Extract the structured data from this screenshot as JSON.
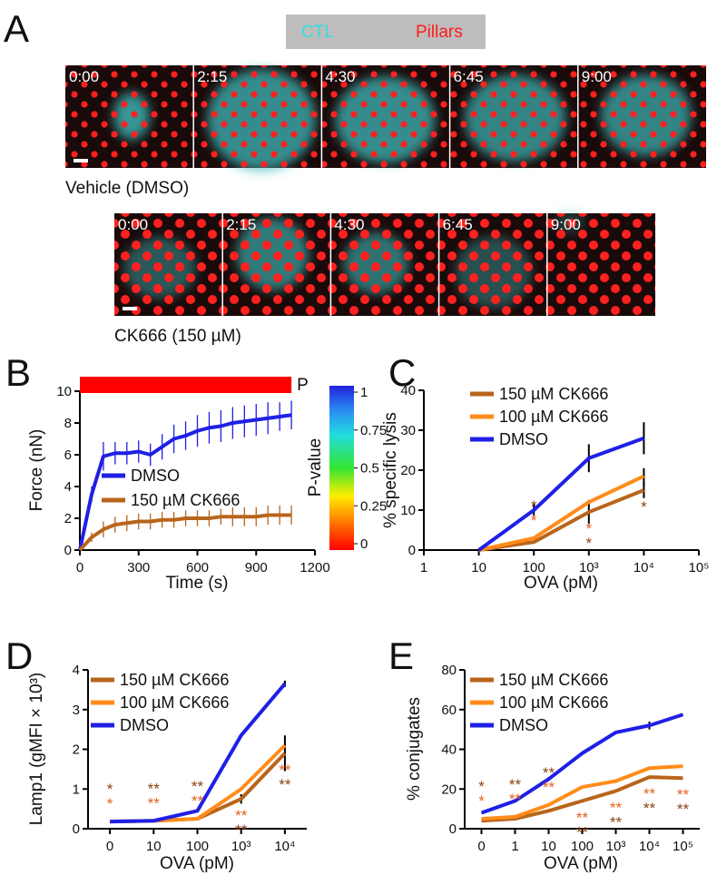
{
  "panel_a": {
    "label": "A",
    "key": {
      "cell": "CTL",
      "pillars": "Pillars"
    },
    "rows": [
      {
        "times": [
          "0:00",
          "2:15",
          "4:30",
          "6:45",
          "9:00"
        ],
        "caption": "Vehicle (DMSO)"
      },
      {
        "times": [
          "0:00",
          "2:15",
          "4:30",
          "6:45",
          "9:00"
        ],
        "caption": "CK666 (150 µM)"
      }
    ]
  },
  "chart_data": [
    {
      "panel": "B",
      "type": "line",
      "x_label": "Time (s)",
      "y_label": "Force (nN)",
      "x": [
        0,
        60,
        120,
        180,
        240,
        300,
        360,
        420,
        480,
        540,
        600,
        660,
        720,
        780,
        840,
        900,
        960,
        1020,
        1080
      ],
      "xlim": [
        0,
        1200
      ],
      "xticks": [
        0,
        300,
        600,
        900,
        1200
      ],
      "ylim": [
        0,
        10
      ],
      "yticks": [
        0,
        2,
        4,
        6,
        8,
        10
      ],
      "series": [
        {
          "name": "DMSO",
          "color": "#1f1fe6",
          "values": [
            0,
            3.5,
            5.9,
            6.1,
            6.1,
            6.2,
            6.0,
            6.5,
            7.0,
            7.2,
            7.5,
            7.7,
            7.8,
            8.0,
            8.1,
            8.2,
            8.3,
            8.4,
            8.5
          ],
          "errors": [
            0,
            0.5,
            0.9,
            0.7,
            0.7,
            0.7,
            0.7,
            0.8,
            0.9,
            0.9,
            1.0,
            1.0,
            1.0,
            1.0,
            1.0,
            1.0,
            1.0,
            0.9,
            0.9
          ]
        },
        {
          "name": "150 µM CK666",
          "color": "#b8651b",
          "values": [
            0,
            0.8,
            1.3,
            1.6,
            1.7,
            1.8,
            1.8,
            1.9,
            1.9,
            2.0,
            2.0,
            2.0,
            2.1,
            2.1,
            2.1,
            2.1,
            2.2,
            2.2,
            2.2
          ],
          "errors": [
            0,
            0.3,
            0.5,
            0.5,
            0.5,
            0.5,
            0.5,
            0.5,
            0.5,
            0.5,
            0.5,
            0.5,
            0.5,
            0.6,
            0.6,
            0.6,
            0.6,
            0.6,
            0.6
          ]
        }
      ],
      "significance_bar": {
        "label": "P"
      },
      "colorbar": {
        "label": "P-value",
        "lim": [
          0,
          1
        ],
        "ticks": [
          0,
          0.25,
          0.5,
          0.75,
          1
        ]
      }
    },
    {
      "panel": "C",
      "type": "line",
      "xscale": "log",
      "x_label": "OVA (pM)",
      "y_label": "% specific lysis",
      "x": [
        10,
        100,
        1000,
        10000
      ],
      "xlim": [
        1,
        100000
      ],
      "xticks": [
        1,
        10,
        100,
        {
          "value": 1000,
          "label": "10³"
        },
        {
          "value": 10000,
          "label": "10⁴"
        },
        {
          "value": 100000,
          "label": "10⁵"
        }
      ],
      "ylim": [
        0,
        40
      ],
      "yticks": [
        0,
        10,
        20,
        30,
        40
      ],
      "series": [
        {
          "name": "150 µM CK666",
          "color": "#b8651b",
          "values": [
            0,
            2,
            9.5,
            15
          ],
          "errors": [
            null,
            null,
            3,
            2
          ],
          "significance": [
            null,
            "*",
            "*",
            "*"
          ],
          "significance_color": "#8b3f12"
        },
        {
          "name": "100 µM CK666",
          "color": "#ff8c1a",
          "values": [
            0,
            3,
            12,
            18.5
          ],
          "errors": [
            null,
            null,
            null,
            2
          ],
          "significance": [
            null,
            "*",
            "*",
            null
          ],
          "significance_color": "#e8601c"
        },
        {
          "name": "DMSO",
          "color": "#1f1fe6",
          "values": [
            0,
            10,
            23,
            28
          ],
          "errors": [
            null,
            1.5,
            3.5,
            4
          ]
        }
      ]
    },
    {
      "panel": "D",
      "type": "line",
      "x_label": "OVA (pM)",
      "y_label": "Lamp1 (gMFI × 10³)",
      "categories": [
        "0",
        "10",
        "100",
        "10³",
        "10⁴"
      ],
      "ylim": [
        0,
        4
      ],
      "yticks": [
        0,
        1,
        2,
        3,
        4
      ],
      "series": [
        {
          "name": "150 µM CK666",
          "color": "#b8651b",
          "values": [
            0.18,
            0.2,
            0.25,
            0.75,
            1.9
          ],
          "errors": [
            null,
            null,
            null,
            0.12,
            0.45
          ],
          "significance": [
            "*",
            "**",
            "**",
            "**",
            "**"
          ],
          "significance_color": "#8b3f12"
        },
        {
          "name": "100 µM CK666",
          "color": "#ff8c1a",
          "values": [
            0.18,
            0.2,
            0.25,
            1.0,
            2.1
          ],
          "errors": [
            null,
            null,
            null,
            null,
            null
          ],
          "significance": [
            "*",
            "**",
            "**",
            "**",
            "**"
          ],
          "significance_color": "#e8601c"
        },
        {
          "name": "DMSO",
          "color": "#1f1fe6",
          "values": [
            0.18,
            0.2,
            0.45,
            2.35,
            3.65
          ],
          "errors": [
            null,
            null,
            null,
            null,
            0.08
          ]
        }
      ]
    },
    {
      "panel": "E",
      "type": "line",
      "x_label": "OVA (pM)",
      "y_label": "% conjugates",
      "categories": [
        "0",
        "1",
        "10",
        "100",
        "10³",
        "10⁴",
        "10⁵"
      ],
      "ylim": [
        0,
        80
      ],
      "yticks": [
        0,
        20,
        40,
        60,
        80
      ],
      "series": [
        {
          "name": "150 µM CK666",
          "color": "#b8651b",
          "values": [
            4,
            5,
            9,
            14,
            19,
            26,
            25.5
          ],
          "significance": [
            "*",
            "**",
            "**",
            "**",
            "**",
            "**",
            "**"
          ],
          "significance_color": "#8b3f12"
        },
        {
          "name": "100 µM CK666",
          "color": "#ff8c1a",
          "values": [
            5,
            6,
            12,
            21,
            24,
            30.5,
            31.5
          ],
          "significance": [
            "*",
            "**",
            "**",
            "**",
            "**",
            "**",
            "**"
          ],
          "significance_color": "#e8601c"
        },
        {
          "name": "DMSO",
          "color": "#1f1fe6",
          "values": [
            8,
            14,
            25,
            38,
            48.5,
            52,
            57.5
          ],
          "errors": [
            null,
            null,
            null,
            null,
            null,
            2,
            null
          ]
        }
      ]
    }
  ]
}
